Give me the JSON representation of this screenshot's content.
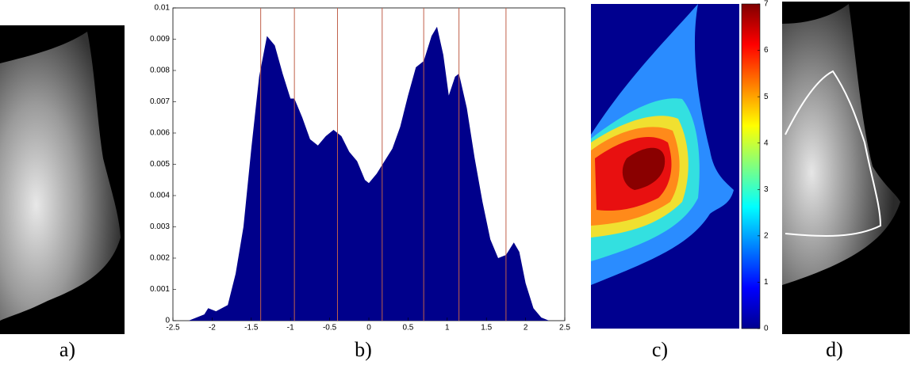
{
  "chart_data": {
    "type": "area",
    "color": "#00008b",
    "line_color": "#c0604a",
    "x": [
      -2.3,
      -2.1,
      -2.05,
      -1.95,
      -1.8,
      -1.7,
      -1.6,
      -1.5,
      -1.4,
      -1.3,
      -1.2,
      -1.1,
      -1.0,
      -0.95,
      -0.85,
      -0.75,
      -0.65,
      -0.55,
      -0.45,
      -0.35,
      -0.25,
      -0.15,
      -0.05,
      0.0,
      0.1,
      0.2,
      0.3,
      0.4,
      0.5,
      0.6,
      0.7,
      0.8,
      0.87,
      0.95,
      1.02,
      1.1,
      1.15,
      1.25,
      1.35,
      1.45,
      1.55,
      1.65,
      1.75,
      1.85,
      1.92,
      2.0,
      2.1,
      2.2,
      2.3
    ],
    "values": [
      0,
      0.0002,
      0.0004,
      0.0003,
      0.0005,
      0.0015,
      0.003,
      0.0055,
      0.0078,
      0.0091,
      0.0088,
      0.0079,
      0.0071,
      0.0071,
      0.0065,
      0.0058,
      0.0056,
      0.0059,
      0.0061,
      0.0059,
      0.0054,
      0.0051,
      0.0045,
      0.0044,
      0.0047,
      0.0051,
      0.0055,
      0.0062,
      0.0072,
      0.0081,
      0.0083,
      0.0091,
      0.0094,
      0.0085,
      0.0072,
      0.0078,
      0.0079,
      0.0068,
      0.0052,
      0.0038,
      0.0026,
      0.002,
      0.0021,
      0.0025,
      0.0022,
      0.0012,
      0.0004,
      0.0001,
      0
    ],
    "vlines": [
      -1.38,
      -0.95,
      -0.4,
      0.17,
      0.7,
      1.15,
      1.75
    ],
    "xlim": [
      -2.5,
      2.5
    ],
    "xticks": [
      -2.5,
      -2,
      -1.5,
      -1,
      -0.5,
      0,
      0.5,
      1,
      1.5,
      2,
      2.5
    ],
    "ylim": [
      0,
      0.01
    ],
    "yticks": [
      0,
      0.001,
      0.002,
      0.003,
      0.004,
      0.005,
      0.006,
      0.007,
      0.008,
      0.009,
      0.01
    ]
  },
  "colorbar": {
    "lim": [
      0,
      7
    ],
    "ticks": [
      0,
      1,
      2,
      3,
      4,
      5,
      6,
      7
    ]
  },
  "labels": [
    "a)",
    "b)",
    "c)",
    "d)"
  ]
}
